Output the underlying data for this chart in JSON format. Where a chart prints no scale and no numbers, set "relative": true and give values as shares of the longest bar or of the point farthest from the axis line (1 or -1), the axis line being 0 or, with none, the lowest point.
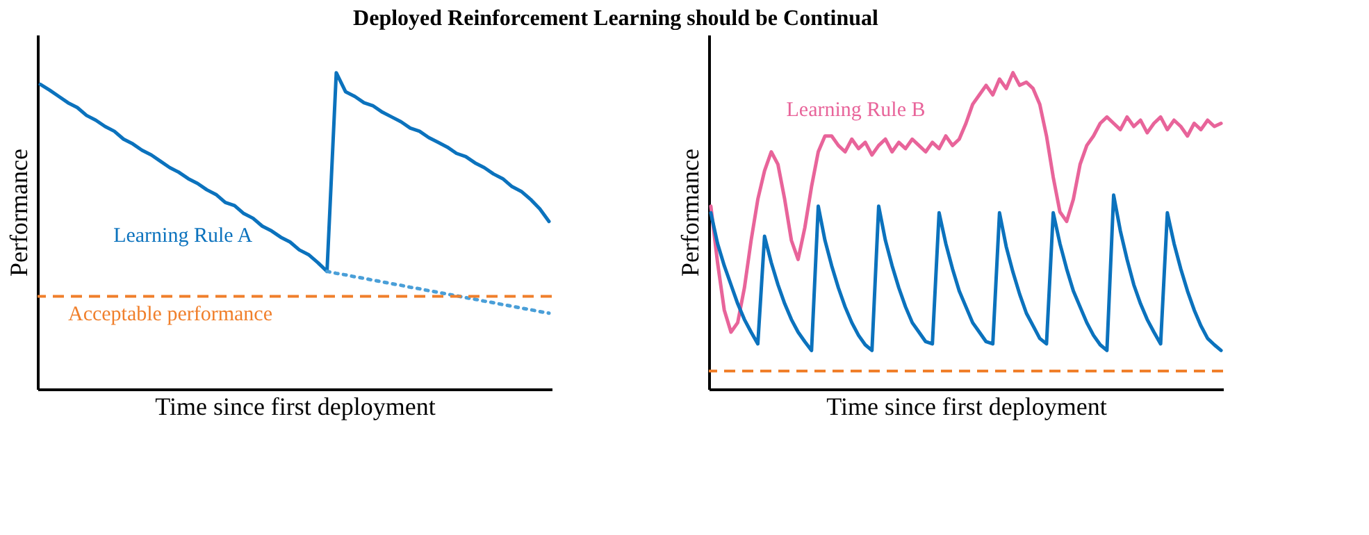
{
  "chart_data": [
    {
      "type": "line",
      "title": "Deployed Reinforcement Learning should be Continual",
      "xlabel": "Time since first deployment",
      "ylabel": "Performance",
      "relative": true,
      "tick_labels": false,
      "categories": [
        null,
        null,
        null,
        null,
        null,
        null,
        null,
        null,
        null,
        null,
        null,
        null,
        null,
        null,
        null,
        null,
        null,
        null,
        null,
        null,
        null,
        null,
        null,
        null,
        null,
        null,
        null,
        null,
        null,
        null,
        null,
        null,
        null,
        null,
        null,
        null,
        null,
        null,
        null,
        null,
        null,
        null,
        null,
        null,
        null,
        null,
        null,
        null,
        null,
        null,
        null,
        null,
        null,
        null,
        null,
        null
      ],
      "series": [
        {
          "name": "Learning Rule A",
          "color": "#0b72bd",
          "line_style": "solid",
          "values": [
            0.963,
            0.945,
            0.925,
            0.905,
            0.89,
            0.865,
            0.85,
            0.83,
            0.815,
            0.79,
            0.775,
            0.755,
            0.74,
            0.72,
            0.7,
            0.685,
            0.665,
            0.65,
            0.63,
            0.615,
            0.59,
            0.58,
            0.555,
            0.54,
            0.515,
            0.5,
            0.48,
            0.465,
            0.44,
            0.425,
            0.4,
            0.372,
            1.0,
            0.94,
            0.925,
            0.905,
            0.895,
            0.875,
            0.86,
            0.845,
            0.825,
            0.815,
            0.795,
            0.78,
            0.765,
            0.745,
            0.735,
            0.715,
            0.7,
            0.68,
            0.665,
            0.64,
            0.625,
            0.6,
            0.57,
            0.53
          ]
        },
        {
          "color": "#4a9fd8",
          "line_style": "dotted",
          "values": [
            null,
            null,
            null,
            null,
            null,
            null,
            null,
            null,
            null,
            null,
            null,
            null,
            null,
            null,
            null,
            null,
            null,
            null,
            null,
            null,
            null,
            null,
            null,
            null,
            null,
            null,
            null,
            null,
            null,
            null,
            null,
            0.372,
            0.366,
            0.361,
            0.355,
            0.35,
            0.344,
            0.339,
            0.333,
            0.328,
            0.322,
            0.317,
            0.311,
            0.306,
            0.3,
            0.295,
            0.289,
            0.284,
            0.278,
            0.273,
            0.267,
            0.262,
            0.256,
            0.251,
            0.245,
            0.24
          ]
        }
      ],
      "ref_lines": [
        {
          "axis": "y",
          "value": 0.293,
          "label": "Acceptable performance",
          "color": "#f07f2b",
          "line_style": "dashed"
        }
      ]
    },
    {
      "type": "line",
      "xlabel": "Time since first deployment",
      "ylabel": "Performance",
      "relative": true,
      "tick_labels": false,
      "categories": [
        null,
        null,
        null,
        null,
        null,
        null,
        null,
        null,
        null,
        null,
        null,
        null,
        null,
        null,
        null,
        null,
        null,
        null,
        null,
        null,
        null,
        null,
        null,
        null,
        null,
        null,
        null,
        null,
        null,
        null,
        null,
        null,
        null,
        null,
        null,
        null,
        null,
        null,
        null,
        null,
        null,
        null,
        null,
        null,
        null,
        null,
        null,
        null,
        null,
        null,
        null,
        null,
        null,
        null,
        null,
        null,
        null,
        null,
        null,
        null,
        null,
        null,
        null,
        null,
        null,
        null,
        null,
        null,
        null,
        null,
        null,
        null,
        null,
        null,
        null,
        null,
        null
      ],
      "series": [
        {
          "name": "Learning Rule B",
          "color": "#e8649a",
          "line_style": "solid",
          "values": [
            0.578,
            0.4,
            0.25,
            0.18,
            0.21,
            0.32,
            0.47,
            0.6,
            0.69,
            0.75,
            0.71,
            0.6,
            0.47,
            0.41,
            0.51,
            0.64,
            0.75,
            0.8,
            0.8,
            0.77,
            0.75,
            0.79,
            0.76,
            0.78,
            0.74,
            0.77,
            0.79,
            0.75,
            0.78,
            0.76,
            0.79,
            0.77,
            0.75,
            0.78,
            0.76,
            0.8,
            0.77,
            0.79,
            0.84,
            0.9,
            0.93,
            0.96,
            0.93,
            0.98,
            0.95,
            1.0,
            0.96,
            0.97,
            0.95,
            0.9,
            0.8,
            0.67,
            0.56,
            0.53,
            0.6,
            0.71,
            0.77,
            0.8,
            0.84,
            0.86,
            0.84,
            0.82,
            0.86,
            0.83,
            0.85,
            0.81,
            0.84,
            0.86,
            0.82,
            0.85,
            0.83,
            0.8,
            0.84,
            0.82,
            0.85,
            0.83,
            0.84
          ]
        },
        {
          "color": "#0b72bd",
          "line_style": "solid",
          "values": [
            0.557,
            0.46,
            0.39,
            0.33,
            0.27,
            0.22,
            0.18,
            0.143,
            0.483,
            0.4,
            0.33,
            0.27,
            0.22,
            0.18,
            0.15,
            0.122,
            0.578,
            0.47,
            0.39,
            0.32,
            0.26,
            0.21,
            0.17,
            0.14,
            0.122,
            0.578,
            0.47,
            0.39,
            0.32,
            0.26,
            0.21,
            0.18,
            0.15,
            0.143,
            0.557,
            0.46,
            0.38,
            0.31,
            0.26,
            0.21,
            0.18,
            0.15,
            0.143,
            0.557,
            0.45,
            0.37,
            0.3,
            0.24,
            0.2,
            0.16,
            0.143,
            0.557,
            0.46,
            0.38,
            0.31,
            0.26,
            0.21,
            0.17,
            0.14,
            0.122,
            0.613,
            0.5,
            0.41,
            0.33,
            0.27,
            0.22,
            0.18,
            0.143,
            0.557,
            0.46,
            0.38,
            0.31,
            0.25,
            0.2,
            0.16,
            0.14,
            0.122
          ]
        }
      ],
      "ref_lines": [
        {
          "axis": "y",
          "value": 0.057,
          "color": "#f07f2b",
          "line_style": "dashed"
        }
      ]
    }
  ]
}
